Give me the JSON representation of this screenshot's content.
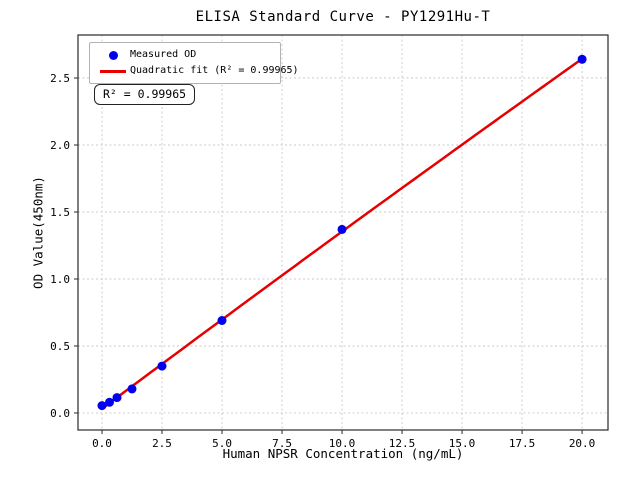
{
  "chart_data": {
    "type": "scatter",
    "title": "ELISA Standard Curve - PY1291Hu-T",
    "xlabel": "Human NPSR Concentration (ng/mL)",
    "ylabel": "OD Value(450nm)",
    "xlim": [
      -1.0,
      21.08
    ],
    "ylim": [
      -0.127,
      2.821
    ],
    "xticks": [
      0.0,
      2.5,
      5.0,
      7.5,
      10.0,
      12.5,
      15.0,
      17.5,
      20.0
    ],
    "yticks": [
      0.0,
      0.5,
      1.0,
      1.5,
      2.0,
      2.5
    ],
    "grid": true,
    "tick_decimals": 1,
    "series": [
      {
        "name": "Measured OD",
        "kind": "scatter",
        "color": "#0000ee",
        "marker": "circle",
        "x": [
          0,
          0.313,
          0.625,
          1.25,
          2.5,
          5,
          10,
          20
        ],
        "y": [
          0.055,
          0.08,
          0.115,
          0.18,
          0.35,
          0.69,
          1.37,
          2.64
        ]
      },
      {
        "name": "Quadratic fit (R² = 0.99965)",
        "kind": "quadratic-fit",
        "color": "#e60000",
        "x_range": [
          0,
          20
        ],
        "r_squared": "0.99965"
      }
    ],
    "legend_position": "upper left",
    "annotation": "R² = 0.99965"
  },
  "colors": {
    "measured": "#0000ee",
    "fit": "#e60000",
    "grid": "#c9c9c9",
    "spine": "#2a2a2a"
  }
}
